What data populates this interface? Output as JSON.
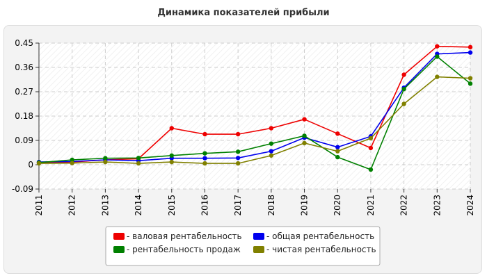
{
  "chart_data": {
    "type": "line",
    "title": "Динамика показателей прибыли",
    "xlabel": "",
    "ylabel": "",
    "x": [
      "2011",
      "2012",
      "2013",
      "2014",
      "2015",
      "2016",
      "2017",
      "2018",
      "2019",
      "2020",
      "2021",
      "2022",
      "2023",
      "2024"
    ],
    "ylim": [
      -0.09,
      0.45
    ],
    "yticks": [
      -0.09,
      0,
      0.09,
      0.18,
      0.27,
      0.36,
      0.45
    ],
    "ytick_labels": [
      "-0.09",
      "0",
      "0.09",
      "0.18",
      "0.27",
      "0.36",
      "0.45"
    ],
    "grid": true,
    "legend_position": "bottom",
    "series": [
      {
        "name": "- валовая рентабельность",
        "color": "#ee0000",
        "values": [
          0.008,
          0.01,
          0.018,
          0.022,
          0.135,
          0.113,
          0.113,
          0.135,
          0.168,
          0.115,
          0.062,
          0.333,
          0.438,
          0.435
        ]
      },
      {
        "name": "- общая рентабельность",
        "color": "#0000ee",
        "values": [
          0.01,
          0.012,
          0.018,
          0.015,
          0.024,
          0.024,
          0.025,
          0.05,
          0.1,
          0.065,
          0.105,
          0.285,
          0.41,
          0.415
        ]
      },
      {
        "name": "- рентабельность продаж",
        "color": "#008000",
        "values": [
          0.008,
          0.018,
          0.024,
          0.025,
          0.034,
          0.042,
          0.048,
          0.078,
          0.107,
          0.028,
          -0.018,
          0.28,
          0.4,
          0.3
        ]
      },
      {
        "name": "- чистая рентабельность",
        "color": "#808000",
        "values": [
          0.005,
          0.006,
          0.01,
          0.005,
          0.01,
          0.005,
          0.005,
          0.034,
          0.08,
          0.05,
          0.098,
          0.225,
          0.325,
          0.32
        ]
      }
    ]
  }
}
